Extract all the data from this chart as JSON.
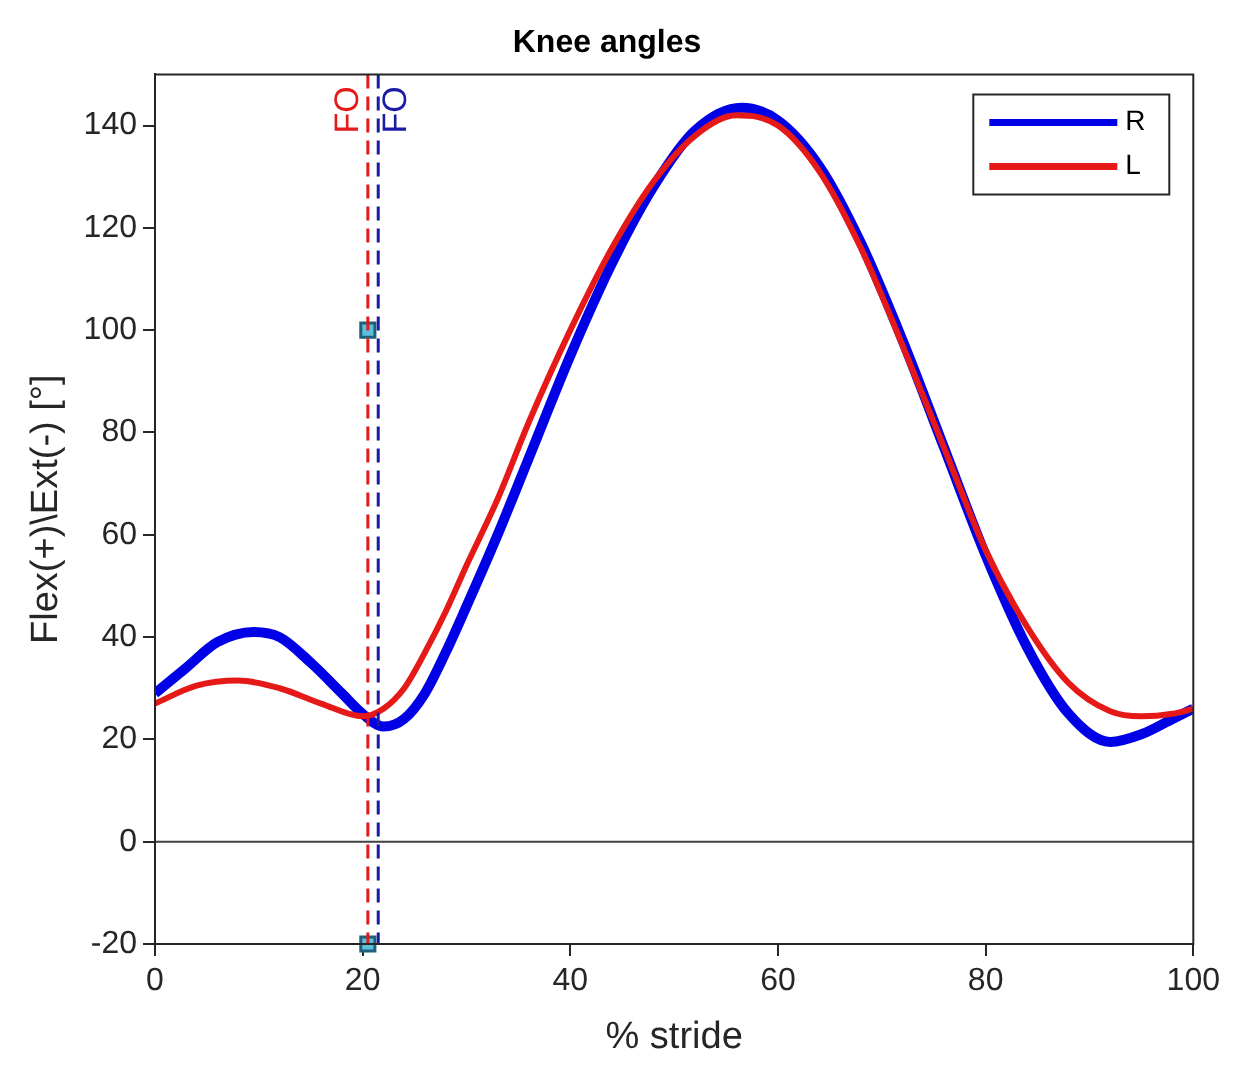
{
  "chart_data": {
    "type": "line",
    "title": "Knee angles",
    "xlabel": "% stride",
    "ylabel": "Flex(+)\\Ext(-) [°]",
    "xlim": [
      0,
      100
    ],
    "xticks": [
      0,
      20,
      40,
      60,
      80,
      100
    ],
    "ylim": [
      -20,
      150
    ],
    "yticks": [
      -20,
      0,
      20,
      40,
      60,
      80,
      100,
      120,
      140
    ],
    "grid": false,
    "legend": "top right",
    "marker": "none",
    "line_style": "solid",
    "series": [
      {
        "name": "R",
        "color": "#0000e6",
        "x": [
          0,
          3,
          6,
          9.5,
          12,
          15,
          18,
          20,
          22,
          24,
          26,
          28,
          30,
          33,
          36,
          40,
          44,
          48,
          52,
          56.5,
          60,
          64,
          68,
          72,
          76,
          80,
          84,
          88,
          92,
          95,
          98,
          100
        ],
        "values": [
          29,
          34,
          39,
          41,
          40,
          35,
          29,
          25,
          22.5,
          24,
          29,
          37,
          46,
          60,
          75,
          95,
          113,
          128,
          139,
          143.5,
          141,
          132,
          117,
          98,
          77,
          56,
          38,
          25,
          19.5,
          21,
          24,
          26
        ]
      },
      {
        "name": "L",
        "color": "#e61919",
        "x": [
          0,
          4,
          8,
          12,
          16,
          20,
          22,
          24,
          26,
          28,
          30,
          33,
          36,
          40,
          44,
          48,
          52,
          56,
          60,
          64,
          68,
          72,
          76,
          80,
          84,
          88,
          92,
          95,
          98,
          100
        ],
        "values": [
          27,
          30.5,
          31.5,
          30,
          27,
          24.5,
          26,
          30,
          37,
          45,
          54,
          67,
          82,
          100,
          116,
          129,
          138,
          142,
          140,
          131,
          116,
          97,
          77,
          57,
          42,
          31,
          25.5,
          24.5,
          25,
          26
        ]
      },
      {
        "type": "scatter",
        "marker": "square",
        "color": "#5bc0de",
        "x": [
          20.5,
          20.5
        ],
        "values": [
          100,
          -20
        ]
      }
    ],
    "ref_lines": [
      {
        "axis": "x",
        "value": 20.5,
        "label": "FO",
        "color": "#e61919",
        "line_style": "dashed"
      },
      {
        "axis": "x",
        "value": 21.5,
        "label": "FO",
        "color": "#1a1aa6",
        "line_style": "dashed"
      },
      {
        "axis": "y",
        "value": 0,
        "color": "#404040",
        "line_style": "solid"
      }
    ]
  }
}
